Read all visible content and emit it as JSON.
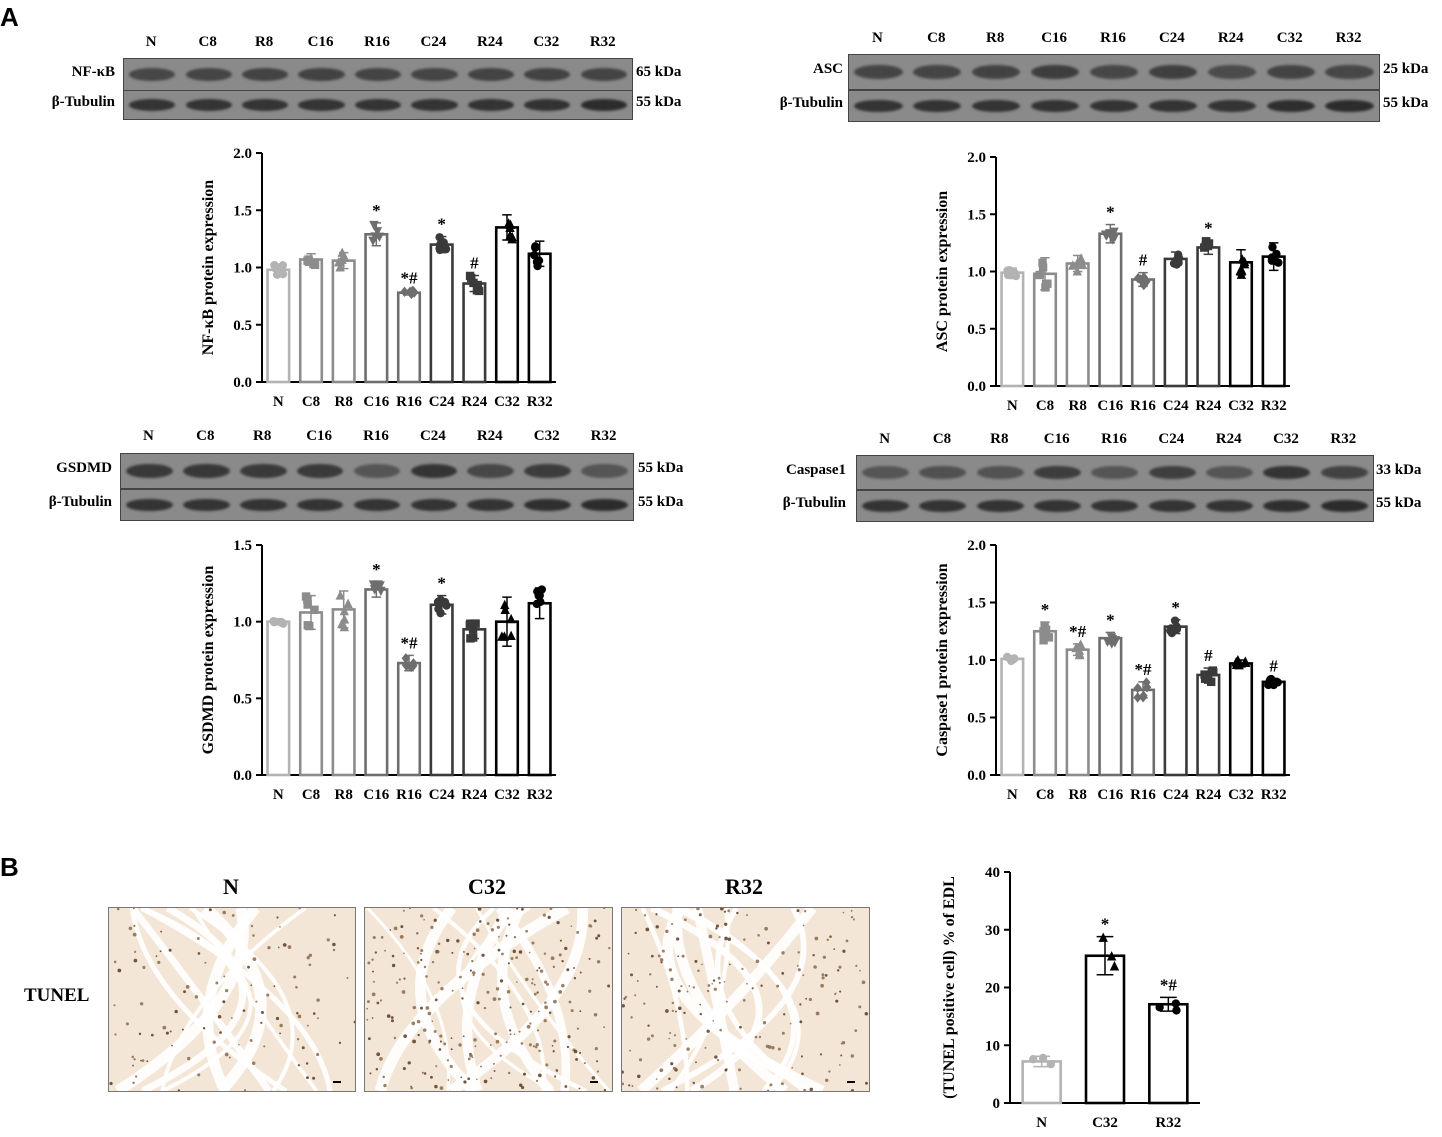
{
  "panels": {
    "a": "A",
    "b": "B"
  },
  "blots": [
    {
      "id": "nfkb",
      "lanes": [
        "N",
        "C8",
        "R8",
        "C16",
        "R16",
        "C24",
        "R24",
        "C32",
        "R32"
      ],
      "rows": [
        {
          "label": "NF-κB",
          "kda": "65 kDa",
          "intensity": [
            0.7,
            0.72,
            0.74,
            0.75,
            0.73,
            0.72,
            0.74,
            0.75,
            0.73
          ]
        },
        {
          "label": "β-Tubulin",
          "kda": "55 kDa",
          "intensity": [
            0.9,
            0.9,
            0.9,
            0.9,
            0.9,
            0.9,
            0.9,
            0.92,
            0.98
          ]
        }
      ]
    },
    {
      "id": "asc",
      "lanes": [
        "N",
        "C8",
        "R8",
        "C16",
        "R16",
        "C24",
        "R24",
        "C32",
        "R32"
      ],
      "rows": [
        {
          "label": "ASC",
          "kda": "25 kDa",
          "intensity": [
            0.72,
            0.72,
            0.75,
            0.8,
            0.7,
            0.78,
            0.66,
            0.74,
            0.7
          ]
        },
        {
          "label": "β-Tubulin",
          "kda": "55 kDa",
          "intensity": [
            0.9,
            0.9,
            0.9,
            0.9,
            0.9,
            0.9,
            0.9,
            0.96,
            0.98
          ]
        }
      ]
    },
    {
      "id": "gsdmd",
      "lanes": [
        "N",
        "C8",
        "R8",
        "C16",
        "R16",
        "C24",
        "R24",
        "C32",
        "R32"
      ],
      "rows": [
        {
          "label": "GSDMD",
          "kda": "55 kDa",
          "intensity": [
            0.85,
            0.86,
            0.84,
            0.84,
            0.55,
            0.9,
            0.7,
            0.82,
            0.55
          ]
        },
        {
          "label": "β-Tubulin",
          "kda": "55 kDa",
          "intensity": [
            0.9,
            0.9,
            0.9,
            0.9,
            0.9,
            0.9,
            0.9,
            0.95,
            0.98
          ]
        }
      ]
    },
    {
      "id": "casp1",
      "lanes": [
        "N",
        "C8",
        "R8",
        "C16",
        "R16",
        "C24",
        "R24",
        "C32",
        "R32"
      ],
      "rows": [
        {
          "label": "Caspase1",
          "kda": "33 kDa",
          "intensity": [
            0.55,
            0.6,
            0.58,
            0.8,
            0.55,
            0.78,
            0.55,
            0.9,
            0.75
          ]
        },
        {
          "label": "β-Tubulin",
          "kda": "55 kDa",
          "intensity": [
            0.9,
            0.9,
            0.9,
            0.9,
            0.9,
            0.9,
            0.9,
            0.95,
            0.98
          ]
        }
      ]
    }
  ],
  "micrographs": {
    "row_label": "TUNEL",
    "titles": [
      "N",
      "C32",
      "R32"
    ]
  },
  "colors": {
    "N": "#b3b3b3",
    "C8": "#8c8c8c",
    "R8": "#8c8c8c",
    "C16": "#6e6e6e",
    "R16": "#6e6e6e",
    "C24": "#3a3a3a",
    "R24": "#3a3a3a",
    "C32": "#000000",
    "R32": "#000000"
  },
  "chart_data": [
    {
      "id": "nfkb",
      "type": "bar",
      "ylabel": "NF-κB protein expression",
      "ylim": [
        0,
        2.0
      ],
      "yticks": [
        0.0,
        0.5,
        1.0,
        1.5,
        2.0
      ],
      "categories": [
        "N",
        "C8",
        "R8",
        "C16",
        "R16",
        "C24",
        "R24",
        "C32",
        "R32"
      ],
      "values": [
        0.98,
        1.07,
        1.06,
        1.29,
        0.78,
        1.2,
        0.86,
        1.35,
        1.12
      ],
      "errors": [
        0.05,
        0.05,
        0.07,
        0.1,
        0.02,
        0.07,
        0.07,
        0.11,
        0.11
      ],
      "markers": [
        "circle",
        "square",
        "triangle-up",
        "triangle-down",
        "diamond",
        "circle",
        "square",
        "triangle-up",
        "circle"
      ],
      "annotations": [
        "",
        "",
        "",
        "*",
        "*#",
        "*",
        "#",
        "",
        ""
      ]
    },
    {
      "id": "asc",
      "type": "bar",
      "ylabel": "ASC protein expression",
      "ylim": [
        0,
        2.0
      ],
      "yticks": [
        0.0,
        0.5,
        1.0,
        1.5,
        2.0
      ],
      "categories": [
        "N",
        "C8",
        "R8",
        "C16",
        "R16",
        "C24",
        "R24",
        "C32",
        "R32"
      ],
      "values": [
        0.99,
        0.98,
        1.07,
        1.33,
        0.93,
        1.11,
        1.21,
        1.08,
        1.13
      ],
      "errors": [
        0.04,
        0.14,
        0.07,
        0.08,
        0.06,
        0.06,
        0.06,
        0.11,
        0.12
      ],
      "markers": [
        "circle",
        "square",
        "triangle-up",
        "triangle-down",
        "diamond",
        "circle",
        "square",
        "triangle-up",
        "circle"
      ],
      "annotations": [
        "",
        "",
        "",
        "*",
        "#",
        "",
        "*",
        "",
        ""
      ]
    },
    {
      "id": "gsdmd",
      "type": "bar",
      "ylabel": "GSDMD protein expression",
      "ylim": [
        0,
        1.5
      ],
      "yticks": [
        0.0,
        0.5,
        1.0,
        1.5
      ],
      "categories": [
        "N",
        "C8",
        "R8",
        "C16",
        "R16",
        "C24",
        "R24",
        "C32",
        "R32"
      ],
      "values": [
        1.0,
        1.06,
        1.08,
        1.21,
        0.73,
        1.11,
        0.95,
        1.0,
        1.12
      ],
      "errors": [
        0.02,
        0.11,
        0.12,
        0.05,
        0.05,
        0.06,
        0.06,
        0.16,
        0.1
      ],
      "markers": [
        "circle",
        "square",
        "triangle-up",
        "triangle-down",
        "diamond",
        "circle",
        "square",
        "triangle-up",
        "circle"
      ],
      "annotations": [
        "",
        "",
        "",
        "*",
        "*#",
        "*",
        "",
        "",
        ""
      ]
    },
    {
      "id": "casp1",
      "type": "bar",
      "ylabel": "Caspase1 protein expression",
      "ylim": [
        0,
        2.0
      ],
      "yticks": [
        0.0,
        0.5,
        1.0,
        1.5,
        2.0
      ],
      "categories": [
        "N",
        "C8",
        "R8",
        "C16",
        "R16",
        "C24",
        "R24",
        "C32",
        "R32"
      ],
      "values": [
        1.01,
        1.25,
        1.09,
        1.19,
        0.74,
        1.29,
        0.87,
        0.97,
        0.81
      ],
      "errors": [
        0.02,
        0.08,
        0.05,
        0.05,
        0.07,
        0.06,
        0.06,
        0.03,
        0.03
      ],
      "markers": [
        "circle",
        "square",
        "triangle-up",
        "triangle-down",
        "diamond",
        "circle",
        "square",
        "triangle-up",
        "circle"
      ],
      "annotations": [
        "",
        "*",
        "*#",
        "*",
        "*#",
        "*",
        "#",
        "",
        "#"
      ]
    },
    {
      "id": "tunel",
      "type": "bar",
      "ylabel": "(TUNEL positive cell) % of EDL",
      "ylim": [
        0,
        40
      ],
      "yticks": [
        0,
        10,
        20,
        30,
        40
      ],
      "categories": [
        "N",
        "C32",
        "R32"
      ],
      "values": [
        7.2,
        25.5,
        17.1
      ],
      "errors": [
        0.9,
        3.3,
        1.2
      ],
      "markers": [
        "circle",
        "triangle-up",
        "circle"
      ],
      "annotations": [
        "",
        "*",
        "*#"
      ]
    }
  ]
}
